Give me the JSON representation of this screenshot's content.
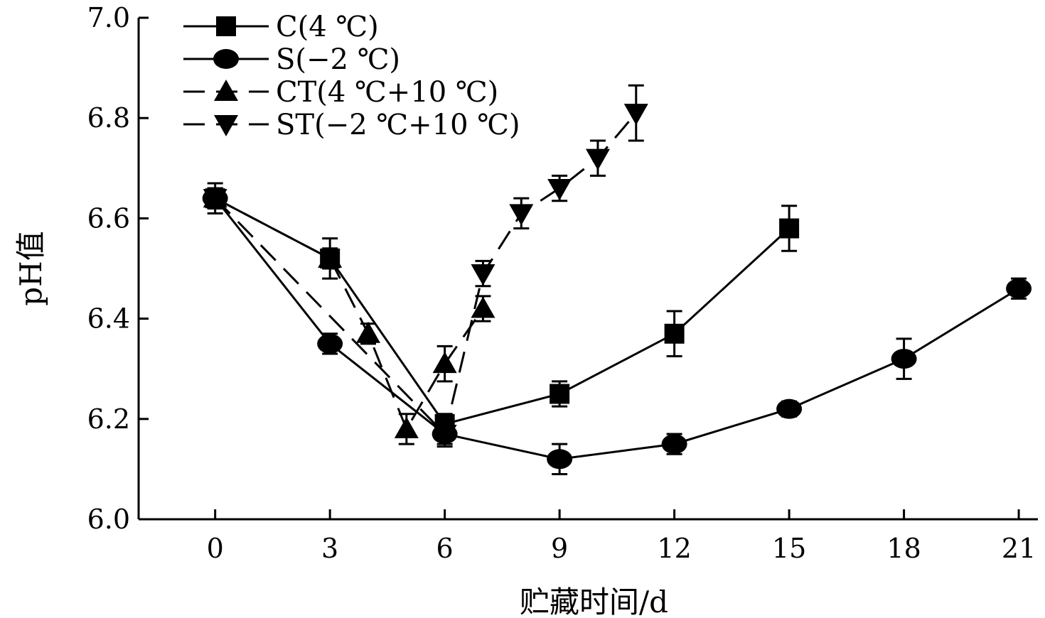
{
  "chart_data": {
    "type": "line",
    "xlabel": "贮藏时间/d",
    "ylabel": "pH值",
    "xlim": [
      -2,
      21.5
    ],
    "ylim": [
      6.0,
      7.0
    ],
    "x_ticks": [
      0,
      3,
      6,
      9,
      12,
      15,
      18,
      21
    ],
    "y_ticks": [
      "6.0",
      "6.2",
      "6.4",
      "6.6",
      "6.8",
      "7.0"
    ],
    "grid": false,
    "legend_position": "top-left",
    "series": [
      {
        "name": "C(4 ℃)",
        "marker": "square",
        "line": "solid",
        "x": [
          0,
          3,
          6,
          9,
          12,
          15
        ],
        "y": [
          6.64,
          6.52,
          6.19,
          6.25,
          6.37,
          6.58
        ],
        "err": [
          0.03,
          0.04,
          0.02,
          0.025,
          0.045,
          0.045
        ]
      },
      {
        "name": "S(−2 ℃)",
        "marker": "circle",
        "line": "solid",
        "x": [
          0,
          3,
          6,
          9,
          12,
          15,
          18,
          21
        ],
        "y": [
          6.64,
          6.35,
          6.17,
          6.12,
          6.15,
          6.22,
          6.32,
          6.46
        ],
        "err": [
          0.02,
          0.02,
          0.025,
          0.03,
          0.02,
          0.015,
          0.04,
          0.02
        ]
      },
      {
        "name": "CT(4 ℃+10 ℃)",
        "marker": "triangle-up",
        "line": "dashed",
        "x": [
          0,
          3,
          4,
          5,
          6,
          7
        ],
        "y": [
          6.64,
          6.52,
          6.37,
          6.18,
          6.31,
          6.42
        ],
        "err": [
          0.02,
          0.02,
          0.02,
          0.03,
          0.035,
          0.025
        ]
      },
      {
        "name": "ST(−2 ℃+10 ℃)",
        "marker": "triangle-down",
        "line": "dashed",
        "x": [
          0,
          6,
          7,
          8,
          9,
          10,
          11
        ],
        "y": [
          6.64,
          6.17,
          6.49,
          6.61,
          6.66,
          6.72,
          6.81
        ],
        "err": [
          0.02,
          0.02,
          0.025,
          0.03,
          0.025,
          0.035,
          0.055
        ]
      }
    ]
  }
}
